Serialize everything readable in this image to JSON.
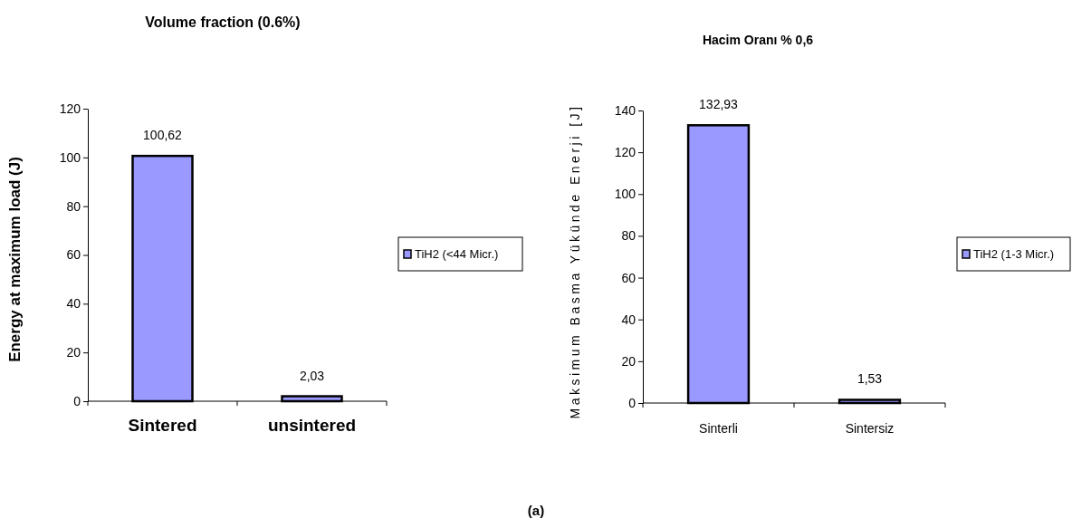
{
  "chart_data": [
    {
      "type": "bar",
      "title": "Volume fraction (0.6%)",
      "ylabel": "Energy at maximum load (J)",
      "categories": [
        "Sintered",
        "unsintered"
      ],
      "series": [
        {
          "name": "TiH2 (<44 Micr.)",
          "color": "#9999ff",
          "values": [
            100.62,
            2.03
          ],
          "value_labels": [
            "100,62",
            "2,03"
          ]
        }
      ],
      "ylim": [
        0,
        120
      ],
      "yticks": [
        0,
        20,
        40,
        60,
        80,
        100,
        120
      ],
      "legend": "right",
      "annotations": [
        "(a)"
      ]
    },
    {
      "type": "bar",
      "title": "Hacim Oranı % 0,6",
      "ylabel": "Maksimum Basma Yükünde Enerji [J]",
      "categories": [
        "Sinterli",
        "Sintersiz"
      ],
      "series": [
        {
          "name": "TiH2 (1-3 Micr.)",
          "color": "#9999ff",
          "values": [
            132.93,
            1.53
          ],
          "value_labels": [
            "132,93",
            "1,53"
          ]
        }
      ],
      "ylim": [
        0,
        140
      ],
      "yticks": [
        0,
        20,
        40,
        60,
        80,
        100,
        120,
        140
      ],
      "legend": "right"
    }
  ]
}
